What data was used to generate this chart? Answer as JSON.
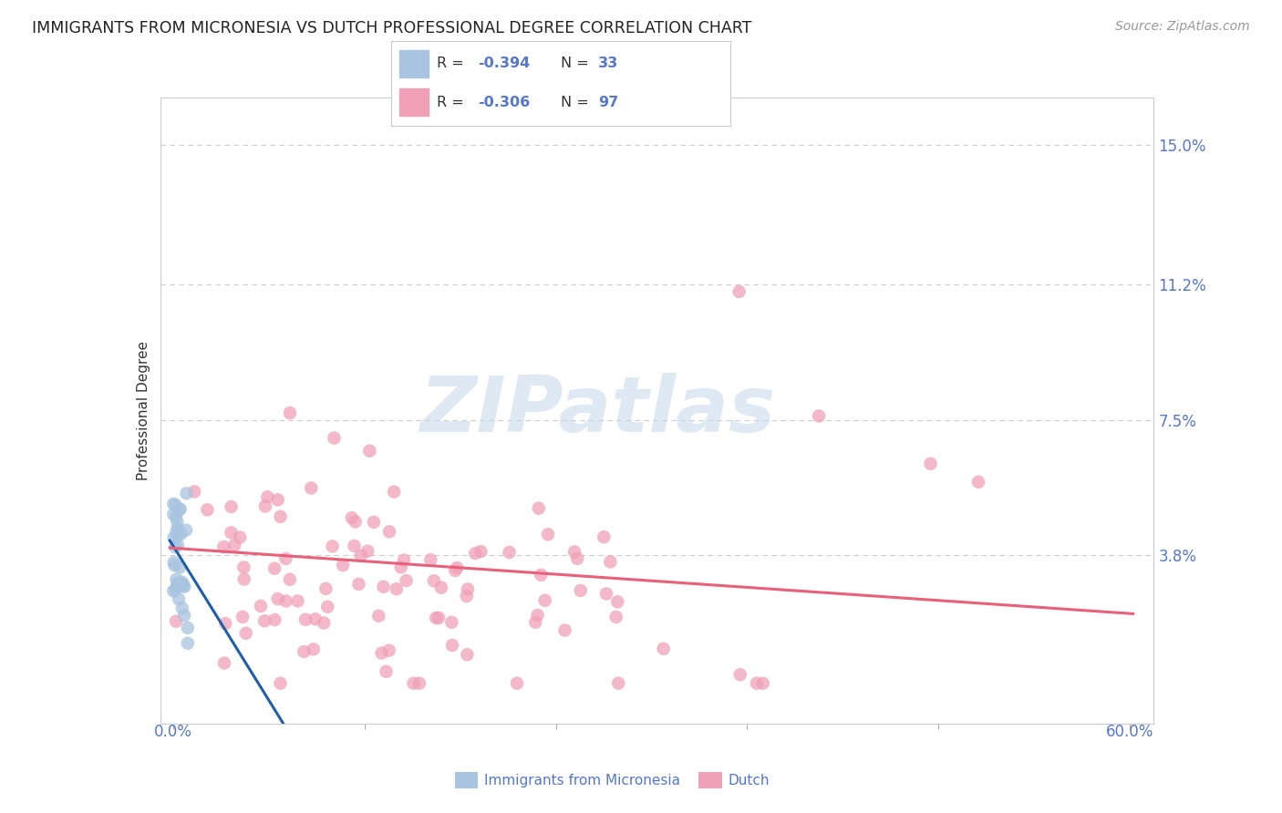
{
  "title": "IMMIGRANTS FROM MICRONESIA VS DUTCH PROFESSIONAL DEGREE CORRELATION CHART",
  "source": "Source: ZipAtlas.com",
  "ylabel": "Professional Degree",
  "y_tick_labels": [
    "15.0%",
    "11.2%",
    "7.5%",
    "3.8%"
  ],
  "y_tick_values": [
    0.15,
    0.112,
    0.075,
    0.038
  ],
  "xlim": [
    0.0,
    0.6
  ],
  "ylim": [
    0.0,
    0.16
  ],
  "watermark_text": "ZIPatlas",
  "blue_line_color": "#1e5fa8",
  "pink_line_color": "#e8607a",
  "blue_dot_color": "#a8c4e0",
  "pink_dot_color": "#f0a0b8",
  "bg_color": "#ffffff",
  "title_color": "#222222",
  "axis_label_color": "#5577cc",
  "grid_color": "#cccccc",
  "legend_r1": "R = -0.394",
  "legend_n1": "N = 33",
  "legend_r2": "R = -0.306",
  "legend_n2": "N = 97",
  "bottom_label1": "Immigrants from Micronesia",
  "bottom_label2": "Dutch"
}
